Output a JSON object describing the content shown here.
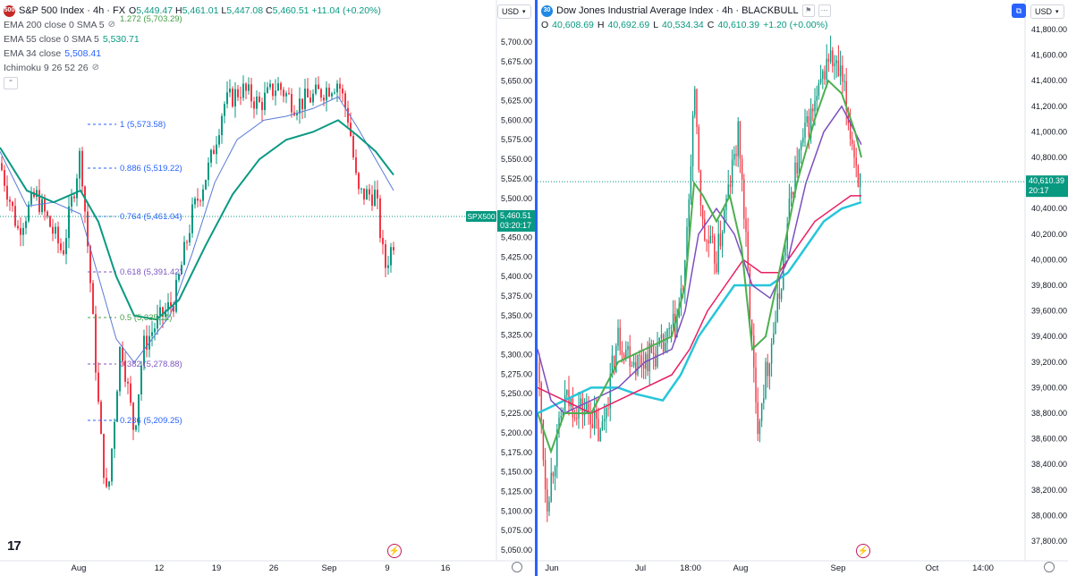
{
  "left_chart": {
    "symbol": "S&P 500 Index · 4h · FX",
    "logo_text": "500",
    "ohlc": {
      "o_label": "O",
      "o": "5,449.47",
      "h_label": "H",
      "h": "5,461.01",
      "l_label": "L",
      "l": "5,447.08",
      "c_label": "C",
      "c": "5,460.51",
      "change": "+11.04 (+0.20%)"
    },
    "indicators": [
      {
        "name": "EMA 200 close 0 SMA 5",
        "value": ""
      },
      {
        "name": "EMA 55 close 0 SMA 5",
        "value": "5,530.71"
      },
      {
        "name": "EMA 34 close",
        "value": "5,508.41"
      },
      {
        "name": "Ichimoku 9 26 52 26",
        "value": ""
      }
    ],
    "top_fib_label": "1.272 (5,703.29)",
    "currency": "USD",
    "price_label_symbol": "SPX500",
    "price_label_value": "5,460.51",
    "price_label_timer": "03:20:17",
    "y_ticks": [
      "5,700.00",
      "5,675.00",
      "5,650.00",
      "5,625.00",
      "5,600.00",
      "5,575.00",
      "5,550.00",
      "5,525.00",
      "5,500.00",
      "5,475.00",
      "5,450.00",
      "5,425.00",
      "5,400.00",
      "5,375.00",
      "5,350.00",
      "5,325.00",
      "5,300.00",
      "5,275.00",
      "5,250.00",
      "5,225.00",
      "5,200.00",
      "5,175.00",
      "5,150.00",
      "5,125.00",
      "5,100.00",
      "5,075.00",
      "5,050.00"
    ],
    "x_ticks": [
      "Aug",
      "12",
      "19",
      "26",
      "Sep",
      "9",
      "16"
    ],
    "fib_levels": [
      {
        "label": "1 (5,573.58)",
        "color": "#2962ff"
      },
      {
        "label": "0.886 (5,519.22)",
        "color": "#2962ff"
      },
      {
        "label": "0.764 (5,461.04)",
        "color": "#2962ff"
      },
      {
        "label": "0.618 (5,391.42)",
        "color": "#7e57c2"
      },
      {
        "label": "0.5 (5,335.11)",
        "color": "#43a047"
      },
      {
        "label": "0.382 (5,278.88)",
        "color": "#7e57c2"
      },
      {
        "label": "0.236 (5,209.25)",
        "color": "#2962ff"
      }
    ],
    "colors": {
      "up": "#089981",
      "down": "#f23645",
      "ema55": "#089981",
      "ema34": "#5b7bd5",
      "price_label_bg": "#089981"
    }
  },
  "right_chart": {
    "symbol": "Dow Jones Industrial Average Index · 4h · BLACKBULL",
    "logo_text": "30",
    "ohlc": {
      "o_label": "O",
      "o": "40,608.69",
      "h_label": "H",
      "h": "40,692.69",
      "l_label": "L",
      "l": "40,534.34",
      "c_label": "C",
      "c": "40,610.39",
      "change": "+1.20 (+0.00%)"
    },
    "currency": "USD",
    "price_label_value": "40,610.39",
    "price_label_timer": "20:17",
    "y_ticks": [
      "41,800.00",
      "41,600.00",
      "41,400.00",
      "41,200.00",
      "41,000.00",
      "40,800.00",
      "40,400.00",
      "40,200.00",
      "40,000.00",
      "39,800.00",
      "39,600.00",
      "39,400.00",
      "39,200.00",
      "39,000.00",
      "38,800.00",
      "38,600.00",
      "38,400.00",
      "38,200.00",
      "38,000.00",
      "37,800.00"
    ],
    "x_ticks": [
      "Jun",
      "Jul",
      "18:00",
      "Aug",
      "Sep",
      "Oct",
      "14:00"
    ],
    "colors": {
      "up": "#089981",
      "down": "#f23645",
      "ma_fast": "#4caf50",
      "ma_mid": "#7b4fbf",
      "ma_slow": "#e91e63",
      "ma_long": "#26c6da"
    }
  }
}
